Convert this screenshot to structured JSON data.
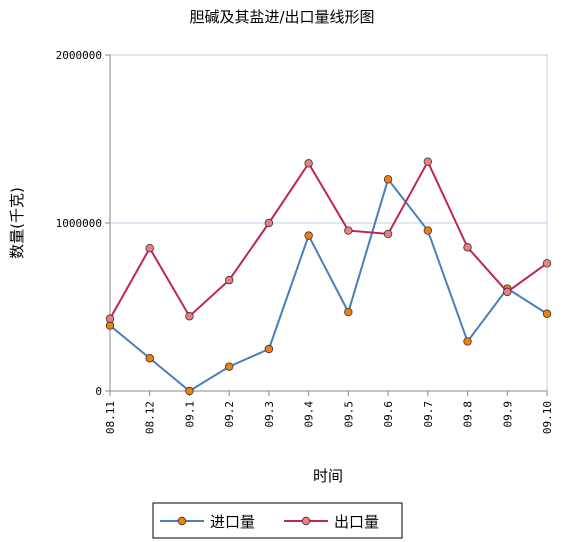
{
  "chart_data": {
    "type": "line",
    "title": "胆碱及其盐进/出口量线形图",
    "xlabel": "时间",
    "ylabel": "数量(千克)",
    "categories": [
      "08.11",
      "08.12",
      "09.1",
      "09.2",
      "09.3",
      "09.4",
      "09.5",
      "09.6",
      "09.7",
      "09.8",
      "09.9",
      "09.10"
    ],
    "ylim": [
      0,
      2000000
    ],
    "yticks": [
      0,
      1000000,
      2000000
    ],
    "ytick_labels": [
      "0",
      "1000000",
      "2000000"
    ],
    "grid": "horizontal",
    "legend_position": "bottom",
    "series": [
      {
        "name": "进口量",
        "color": "#4a7ebb",
        "marker_color": "#f07f0e",
        "values": [
          390000,
          195000,
          0,
          145000,
          250000,
          925000,
          470000,
          1260000,
          955000,
          295000,
          610000,
          460000
        ]
      },
      {
        "name": "出口量",
        "color": "#c0245c",
        "marker_color": "#e98080",
        "values": [
          430000,
          850000,
          445000,
          660000,
          1000000,
          1355000,
          955000,
          935000,
          1365000,
          855000,
          590000,
          760000
        ]
      }
    ]
  }
}
